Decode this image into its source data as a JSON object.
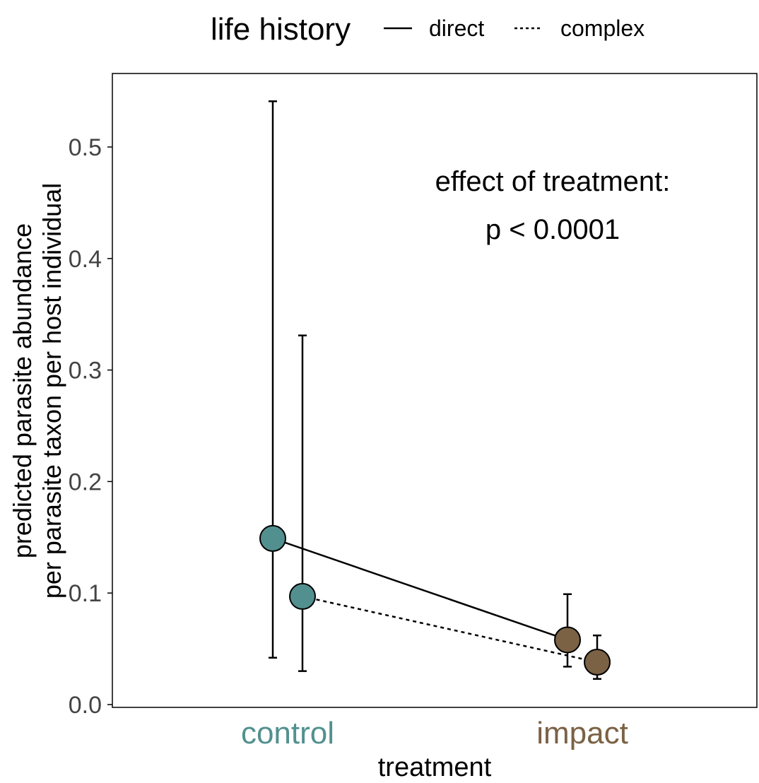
{
  "chart_data": {
    "type": "scatter",
    "xlabel": "treatment",
    "ylabel_lines": [
      "predicted parasite abundance",
      "per parasite taxon per host individual"
    ],
    "categories": [
      "control",
      "impact"
    ],
    "category_colors": [
      "#52908f",
      "#7b6245"
    ],
    "ylim": [
      0,
      0.57
    ],
    "yticks": [
      0.0,
      0.1,
      0.2,
      0.3,
      0.4,
      0.5
    ],
    "ytick_labels": [
      "0.0",
      "0.1",
      "0.2",
      "0.3",
      "0.4",
      "0.5"
    ],
    "grid": false,
    "legend": {
      "title": "life history",
      "position": "top",
      "entries": [
        {
          "label": "direct",
          "linetype": "solid"
        },
        {
          "label": "complex",
          "linetype": "dotted"
        }
      ]
    },
    "annotation": {
      "line1": "effect of treatment:",
      "line2": "p < 0.0001"
    },
    "series": [
      {
        "name": "direct",
        "linetype": "solid",
        "points": [
          {
            "category": "control",
            "y": 0.149,
            "lower": 0.042,
            "upper": 0.541
          },
          {
            "category": "impact",
            "y": 0.058,
            "lower": 0.034,
            "upper": 0.099
          }
        ]
      },
      {
        "name": "complex",
        "linetype": "dotted",
        "points": [
          {
            "category": "control",
            "y": 0.097,
            "lower": 0.03,
            "upper": 0.331
          },
          {
            "category": "impact",
            "y": 0.038,
            "lower": 0.023,
            "upper": 0.062
          }
        ]
      }
    ]
  }
}
